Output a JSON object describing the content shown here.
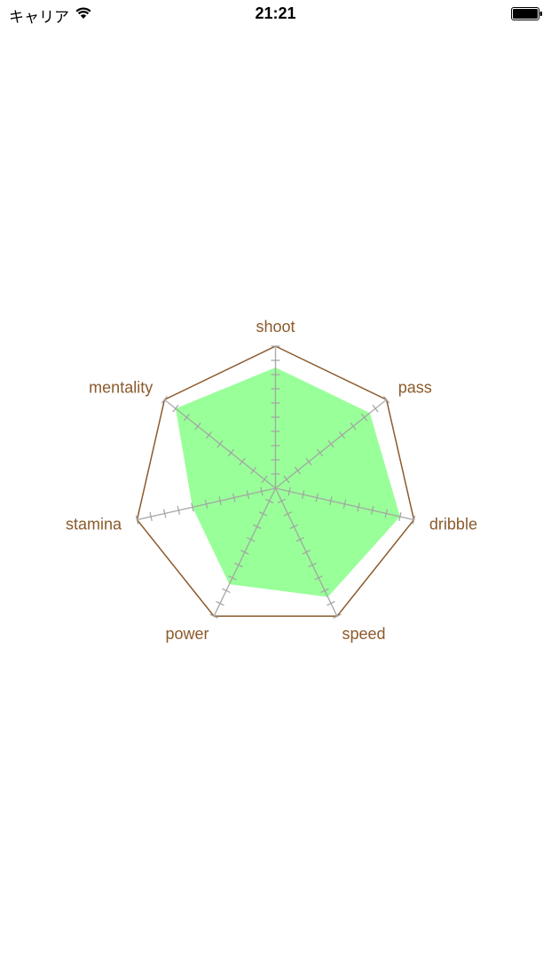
{
  "status_bar": {
    "carrier": "キャリア",
    "time": "21:21"
  },
  "chart_data": {
    "type": "radar",
    "axes": [
      "shoot",
      "pass",
      "dribble",
      "speed",
      "power",
      "stamina",
      "mentality"
    ],
    "values": [
      0.85,
      0.85,
      0.9,
      0.85,
      0.75,
      0.6,
      0.9
    ],
    "max": 1,
    "tick_count": 10,
    "colors": {
      "fill": "#99ff99",
      "outline": "#8b5a2b",
      "axis": "#a3a3a3",
      "label": "#8b5a2b"
    }
  }
}
